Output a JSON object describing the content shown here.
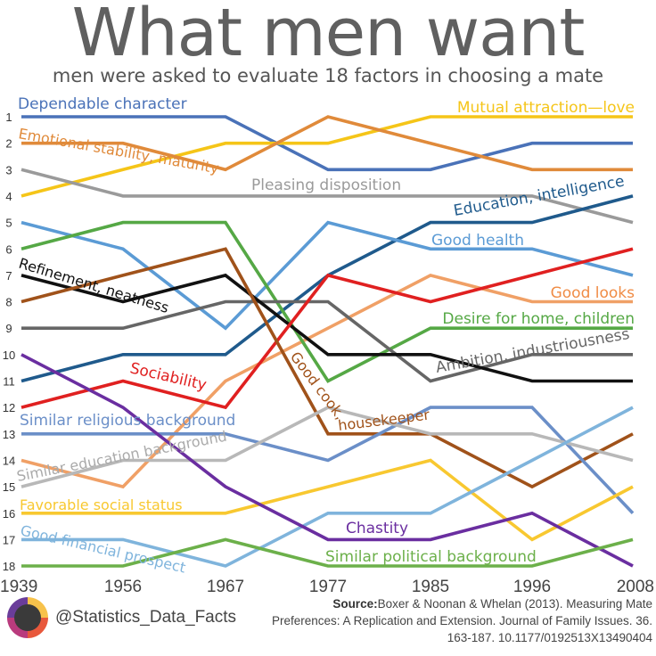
{
  "header": {
    "title": "What men want",
    "subtitle": "men were asked to evaluate 18 factors in choosing a mate"
  },
  "footer": {
    "handle": "@Statistics_Data_Facts",
    "source_label": "Source:",
    "source_text": "Boxer & Noonan & Whelan (2013).  Measuring Mate Preferences:  A Replication and Extension. Journal of Family Issues. 36. 163-187. 10.1177/0192513X13490404"
  },
  "chart_data": {
    "type": "line",
    "x": [
      "1939",
      "1956",
      "1967",
      "1977",
      "1985",
      "1996",
      "2008"
    ],
    "y_ticks": [
      1,
      2,
      3,
      4,
      5,
      6,
      7,
      8,
      9,
      10,
      11,
      12,
      13,
      14,
      15,
      16,
      17,
      18
    ],
    "ylim": [
      1,
      18
    ],
    "y_inverted": true,
    "grid": false,
    "series": [
      {
        "name": "Dependable character",
        "color": "#4a72b8",
        "values": [
          1,
          1,
          1,
          3,
          3,
          2,
          2
        ]
      },
      {
        "name": "Mutual attraction—love",
        "color": "#f5c518",
        "values": [
          4,
          3,
          2,
          2,
          1,
          1,
          1
        ]
      },
      {
        "name": "Emotional stability, maturity",
        "color": "#e08a3a",
        "values": [
          2,
          2,
          3,
          1,
          2,
          3,
          3
        ]
      },
      {
        "name": "Pleasing disposition",
        "color": "#9a9a9a",
        "values": [
          3,
          4,
          4,
          4,
          4,
          4,
          5
        ]
      },
      {
        "name": "Education, intelligence",
        "color": "#1f5a8c",
        "values": [
          11,
          10,
          10,
          7,
          5,
          5,
          4
        ]
      },
      {
        "name": "Good health",
        "color": "#5b9bd5",
        "values": [
          5,
          6,
          9,
          5,
          6,
          6,
          7
        ]
      },
      {
        "name": "Good looks",
        "color": "#f0a066",
        "values": [
          14,
          15,
          11,
          9,
          7,
          8,
          8
        ]
      },
      {
        "name": "Desire for home, children",
        "color": "#55a845",
        "values": [
          6,
          5,
          5,
          11,
          9,
          9,
          9
        ]
      },
      {
        "name": "Ambition, industriousness",
        "color": "#666666",
        "values": [
          9,
          9,
          8,
          8,
          11,
          10,
          10
        ]
      },
      {
        "name": "Refinement, neatness",
        "color": "#111111",
        "values": [
          7,
          8,
          7,
          10,
          10,
          11,
          11
        ]
      },
      {
        "name": "Sociability",
        "color": "#e02020",
        "values": [
          12,
          11,
          12,
          7,
          8,
          7,
          6
        ]
      },
      {
        "name": "Good cook, housekeeper",
        "color": "#a0521a",
        "values": [
          8,
          7,
          6,
          13,
          13,
          15,
          13
        ]
      },
      {
        "name": "Similar religious background",
        "color": "#6b8fc8",
        "values": [
          13,
          13,
          13,
          14,
          12,
          12,
          16
        ]
      },
      {
        "name": "Similar education background",
        "color": "#b8b8b8",
        "values": [
          15,
          14,
          14,
          12,
          13,
          13,
          14
        ]
      },
      {
        "name": "Favorable social status",
        "color": "#f8c830",
        "values": [
          16,
          16,
          16,
          15,
          14,
          17,
          15
        ]
      },
      {
        "name": "Good financial prospect",
        "color": "#7fb4dc",
        "values": [
          17,
          17,
          18,
          16,
          16,
          14,
          12
        ]
      },
      {
        "name": "Chastity",
        "color": "#6a2ea0",
        "values": [
          10,
          12,
          15,
          17,
          17,
          16,
          18
        ]
      },
      {
        "name": "Similar political background",
        "color": "#6cb04a",
        "values": [
          18,
          18,
          17,
          18,
          18,
          18,
          17
        ]
      }
    ]
  }
}
